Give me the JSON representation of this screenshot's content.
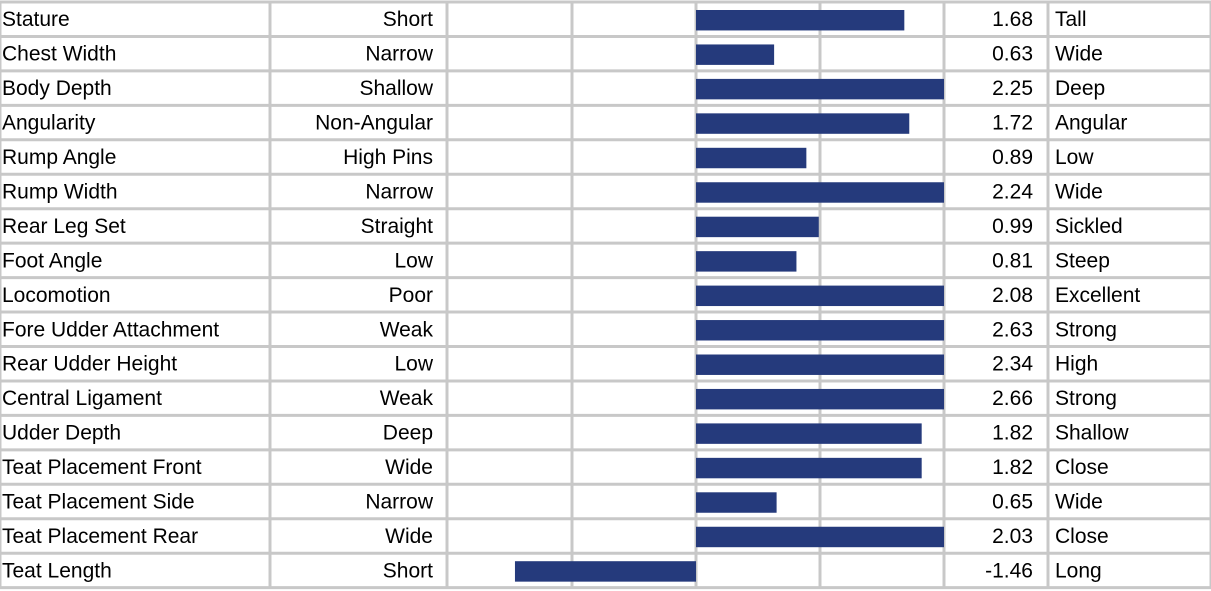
{
  "colors": {
    "bar": "#253a7c",
    "grid": "#c8c8c8",
    "text": "#000000",
    "background": "#ffffff"
  },
  "chart_data": {
    "type": "bar",
    "orientation": "horizontal",
    "layout": "linear type profile table",
    "xlim": [
      -2.0,
      2.0
    ],
    "categories": [
      "Stature",
      "Chest Width",
      "Body Depth",
      "Angularity",
      "Rump Angle",
      "Rump Width",
      "Rear Leg Set",
      "Foot Angle",
      "Locomotion",
      "Fore Udder Attachment",
      "Rear Udder Height",
      "Central Ligament",
      "Udder Depth",
      "Teat Placement Front",
      "Teat Placement Side",
      "Teat Placement Rear",
      "Teat Length"
    ],
    "low_labels": [
      "Short",
      "Narrow",
      "Shallow",
      "Non-Angular",
      "High Pins",
      "Narrow",
      "Straight",
      "Low",
      "Poor",
      "Weak",
      "Low",
      "Weak",
      "Deep",
      "Wide",
      "Narrow",
      "Wide",
      "Short"
    ],
    "high_labels": [
      "Tall",
      "Wide",
      "Deep",
      "Angular",
      "Low",
      "Wide",
      "Sickled",
      "Steep",
      "Excellent",
      "Strong",
      "High",
      "Strong",
      "Shallow",
      "Close",
      "Wide",
      "Close",
      "Long"
    ],
    "values": [
      1.68,
      0.63,
      2.25,
      1.72,
      0.89,
      2.24,
      0.99,
      0.81,
      2.08,
      2.63,
      2.34,
      2.66,
      1.82,
      1.82,
      0.65,
      2.03,
      -1.46
    ],
    "value_labels": [
      "1.68",
      "0.63",
      "2.25",
      "1.72",
      "0.89",
      "2.24",
      "0.99",
      "0.81",
      "2.08",
      "2.63",
      "2.34",
      "2.66",
      "1.82",
      "1.82",
      "0.65",
      "2.03",
      "-1.46"
    ],
    "grid": true,
    "legend": "none"
  }
}
